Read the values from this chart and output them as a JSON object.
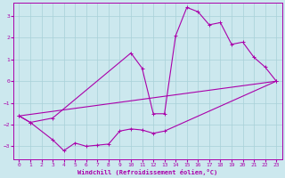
{
  "xlabel": "Windchill (Refroidissement éolien,°C)",
  "bg_color": "#cce8ee",
  "grid_color": "#a8d0d8",
  "line_color": "#aa00aa",
  "xlim": [
    -0.5,
    23.5
  ],
  "ylim": [
    -3.6,
    3.6
  ],
  "yticks": [
    -3,
    -2,
    -1,
    0,
    1,
    2,
    3
  ],
  "xticks": [
    0,
    1,
    2,
    3,
    4,
    5,
    6,
    7,
    8,
    9,
    10,
    11,
    12,
    13,
    14,
    15,
    16,
    17,
    18,
    19,
    20,
    21,
    22,
    23
  ],
  "line1_x": [
    0,
    1,
    3,
    10,
    11,
    12,
    13,
    14,
    15,
    16,
    17,
    18,
    19,
    20,
    21,
    22,
    23
  ],
  "line1_y": [
    -1.6,
    -1.9,
    -1.7,
    1.3,
    0.6,
    -1.5,
    -1.5,
    2.1,
    3.4,
    3.2,
    2.6,
    2.7,
    1.7,
    1.8,
    1.1,
    0.65,
    0.0
  ],
  "line2_x": [
    0,
    1,
    3,
    4,
    5,
    6,
    7,
    8,
    9,
    10,
    11,
    12,
    13,
    23
  ],
  "line2_y": [
    -1.6,
    -1.9,
    -2.7,
    -3.2,
    -2.85,
    -3.0,
    -2.95,
    -2.9,
    -2.3,
    -2.2,
    -2.25,
    -2.4,
    -2.3,
    0.0
  ],
  "line3_x": [
    0,
    23
  ],
  "line3_y": [
    -1.6,
    0.0
  ]
}
